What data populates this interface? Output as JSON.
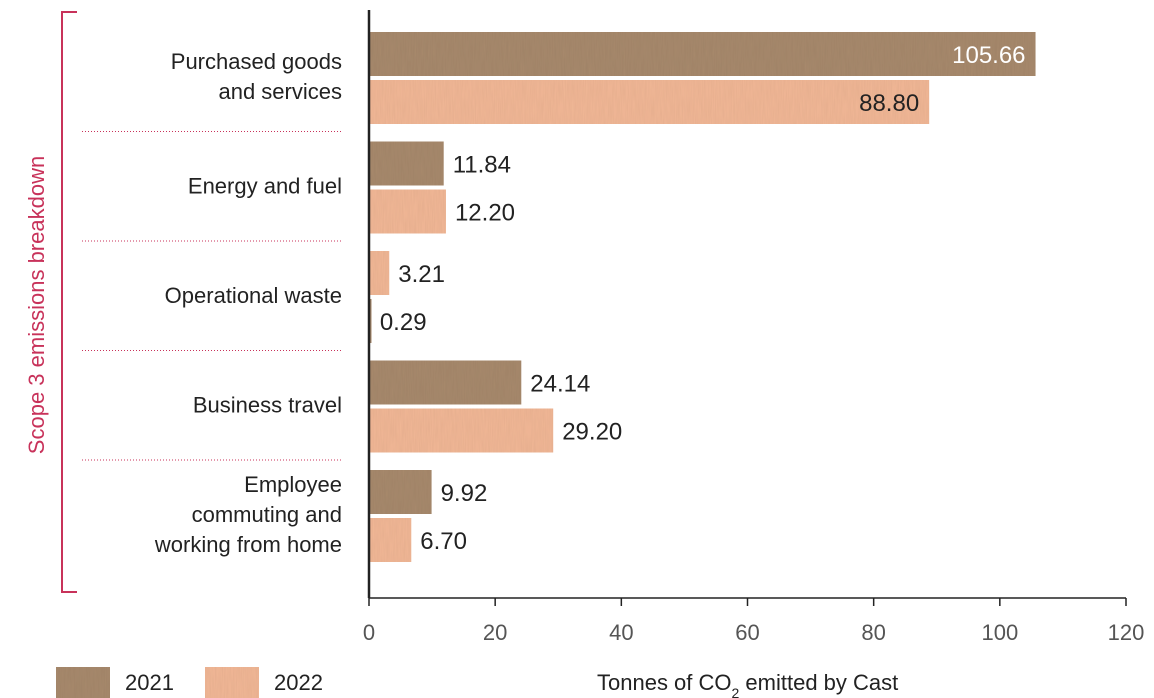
{
  "chart_data": {
    "type": "bar",
    "orientation": "horizontal",
    "categories": [
      [
        "Purchased goods",
        "and services"
      ],
      [
        "Energy and fuel"
      ],
      [
        "Operational waste"
      ],
      [
        "Business travel"
      ],
      [
        "Employee",
        "commuting and",
        "working from home"
      ]
    ],
    "series": [
      {
        "name": "2021",
        "values": [
          105.66,
          11.84,
          0.29,
          24.14,
          9.92
        ],
        "labels": [
          "105.66",
          "11.84",
          "0.29",
          "24.14",
          "9.92"
        ]
      },
      {
        "name": "2022",
        "values": [
          88.8,
          12.2,
          3.21,
          29.2,
          6.7
        ],
        "labels": [
          "88.80",
          "12.20",
          "3.21",
          "29.20",
          "6.70"
        ]
      }
    ],
    "bar_order": [
      [
        "2021",
        "2022"
      ],
      [
        "2021",
        "2022"
      ],
      [
        "2022",
        "2021"
      ],
      [
        "2021",
        "2022"
      ],
      [
        "2021",
        "2022"
      ]
    ],
    "xlim": [
      0,
      120
    ],
    "xticks": [
      "0",
      "20",
      "40",
      "60",
      "80",
      "100",
      "120"
    ],
    "xlabel_prefix": "Tonnes of CO",
    "xlabel_subscript": "2",
    "xlabel_suffix": " emitted by Cast",
    "group_label": "Scope 3 emissions breakdown",
    "grid": false,
    "legend_position": "bottom-left"
  },
  "colors": {
    "2021": "#a88a6d",
    "2022": "#f2b896",
    "group_bracket": "#c8325a",
    "divider": "#c8325a",
    "axis": "#222222"
  }
}
